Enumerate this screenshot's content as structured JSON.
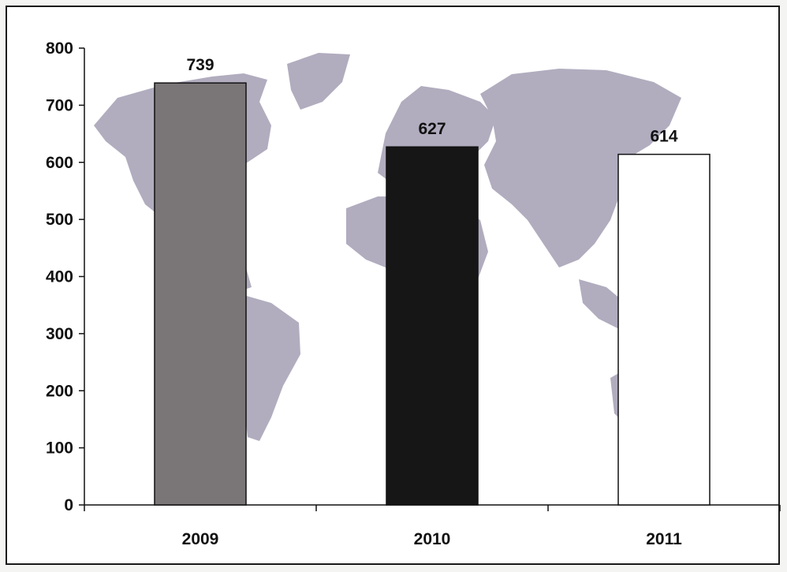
{
  "chart_data": {
    "type": "bar",
    "categories": [
      "2009",
      "2010",
      "2011"
    ],
    "values": [
      739,
      627,
      614
    ],
    "data_labels": [
      "739",
      "627",
      "614"
    ],
    "title": "",
    "xlabel": "",
    "ylabel": "",
    "ylim": [
      0,
      800
    ],
    "yticks": [
      "0",
      "100",
      "200",
      "300",
      "400",
      "500",
      "600",
      "700",
      "800"
    ],
    "bar_colors": [
      "#7a7678",
      "#161616",
      "#ffffff"
    ],
    "background": "world-map-silhouette",
    "map_color": "#a9a4b8",
    "grid": false,
    "legend": "none"
  }
}
